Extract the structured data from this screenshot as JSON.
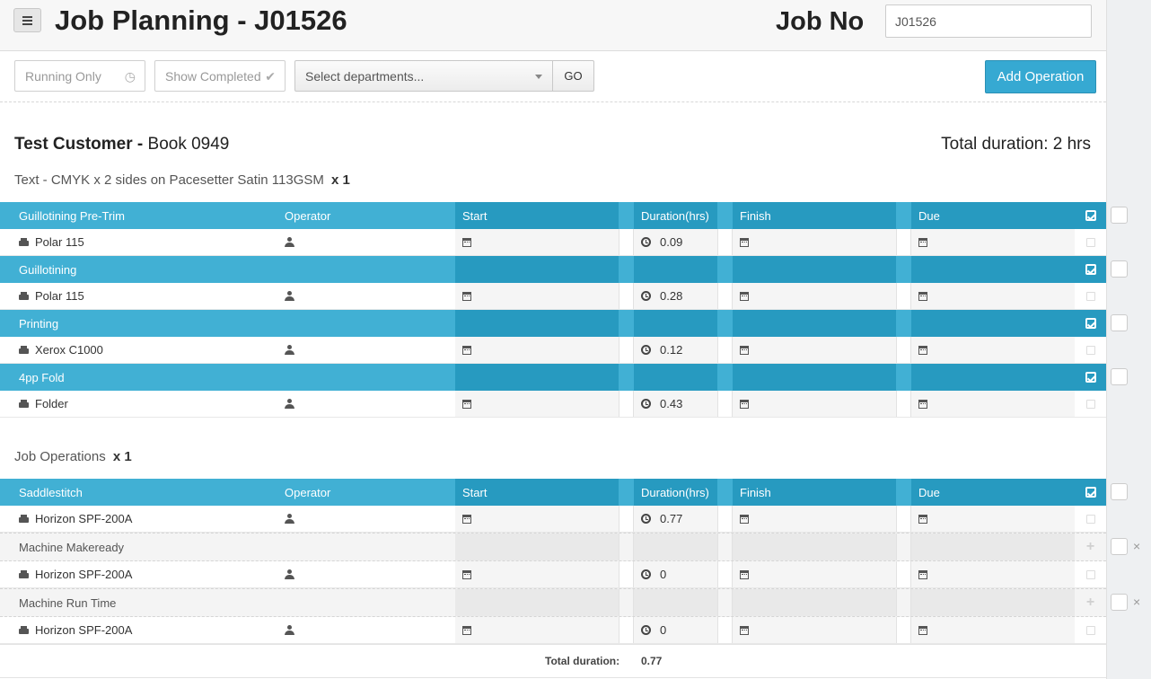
{
  "header": {
    "title": "Job Planning - J01526",
    "job_no_label": "Job No",
    "job_no_value": "J01526"
  },
  "toolbar": {
    "running_only": "Running Only",
    "show_completed": "Show Completed",
    "departments_placeholder": "Select departments...",
    "go": "GO",
    "add_operation": "Add Operation"
  },
  "job": {
    "customer": "Test Customer -",
    "book": "Book 0949",
    "total_duration": "Total duration: 2 hrs"
  },
  "columns": {
    "operator": "Operator",
    "start": "Start",
    "duration": "Duration(hrs)",
    "finish": "Finish",
    "due": "Due"
  },
  "part1": {
    "title": "Text - CMYK x 2 sides on Pacesetter Satin 113GSM",
    "qty": "x 1",
    "operations": [
      {
        "name": "Guillotining Pre-Trim",
        "machine": "Polar 115",
        "duration": "0.09"
      },
      {
        "name": "Guillotining",
        "machine": "Polar 115",
        "duration": "0.28"
      },
      {
        "name": "Printing",
        "machine": "Xerox C1000",
        "duration": "0.12"
      },
      {
        "name": "4pp Fold",
        "machine": "Folder",
        "duration": "0.43"
      }
    ]
  },
  "part2": {
    "title": "Job Operations",
    "qty": "x 1",
    "operation": {
      "name": "Saddlestitch",
      "machine": "Horizon SPF-200A",
      "duration": "0.77"
    },
    "sub_operations": [
      {
        "name": "Machine Makeready",
        "machine": "Horizon SPF-200A",
        "duration": "0"
      },
      {
        "name": "Machine Run Time",
        "machine": "Horizon SPF-200A",
        "duration": "0"
      }
    ],
    "total_label": "Total duration:",
    "total_value": "0.77"
  },
  "gutter": {
    "remove_symbol": "×"
  },
  "colors": {
    "header_light": "#41b0d4",
    "header_dark": "#279ac0",
    "accent_button": "#36a9d2"
  }
}
